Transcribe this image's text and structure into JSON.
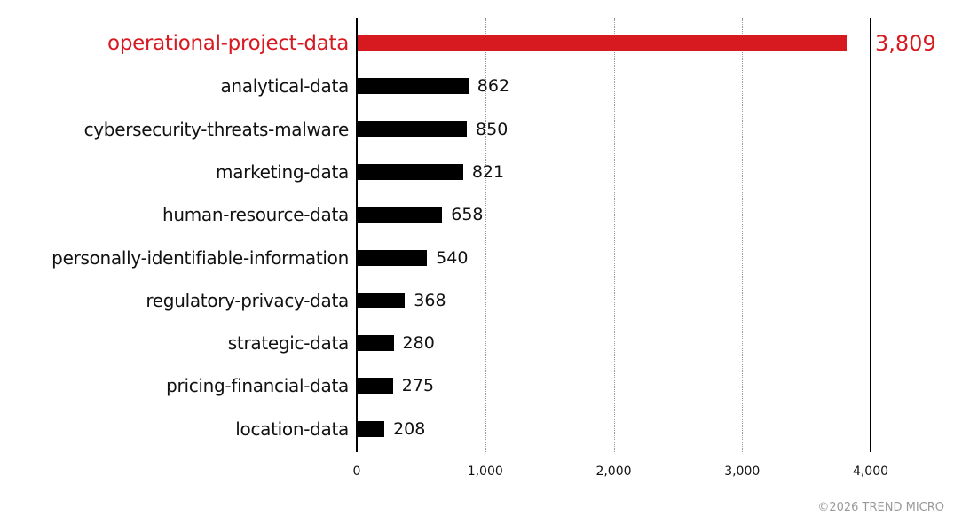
{
  "chart_data": {
    "type": "bar",
    "orientation": "horizontal",
    "title": "",
    "xlabel": "",
    "ylabel": "",
    "xlim": [
      0,
      4000
    ],
    "xticks": [
      0,
      1000,
      2000,
      3000,
      4000
    ],
    "xtick_labels": [
      "0",
      "1,000",
      "2,000",
      "3,000",
      "4,000"
    ],
    "grid": "vertical dotted",
    "categories": [
      "operational-project-data",
      "analytical-data",
      "cybersecurity-threats-malware",
      "marketing-data",
      "human-resource-data",
      "personally-identifiable-information",
      "regulatory-privacy-data",
      "strategic-data",
      "pricing-financial-data",
      "location-data"
    ],
    "values": [
      3809,
      862,
      850,
      821,
      658,
      540,
      368,
      280,
      275,
      208
    ],
    "value_labels": [
      "3,809",
      "862",
      "850",
      "821",
      "658",
      "540",
      "368",
      "280",
      "275",
      "208"
    ],
    "highlight_index": 0,
    "colors": {
      "highlight": "#d71920",
      "default": "#000000"
    }
  },
  "footer": {
    "credit": "©2026 TREND MICRO"
  }
}
